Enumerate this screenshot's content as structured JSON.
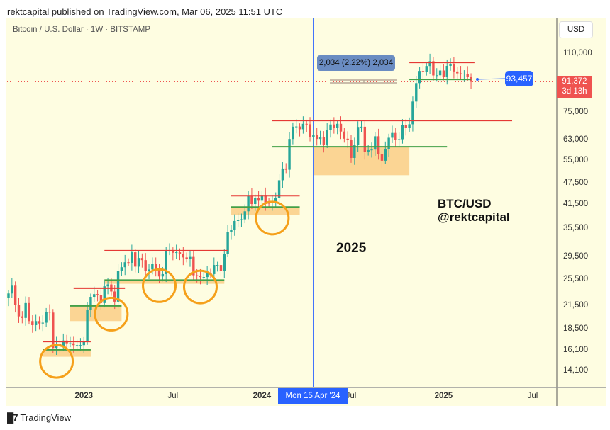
{
  "header": {
    "published": "rektcapital published on TradingView.com, Mar 06, 2025 11:51 UTC"
  },
  "chart_data": {
    "type": "candlestick",
    "symbol": "Bitcoin / U.S. Dollar · 1W · BITSTAMP",
    "interval": "1W",
    "currency": "USD",
    "y_scale": "log",
    "ylim": [
      12500,
      125000
    ],
    "x_start": "2022-08-01",
    "close": [
      23200,
      24400,
      21500,
      20000,
      19800,
      21800,
      19400,
      18900,
      19400,
      19100,
      19200,
      20600,
      20500,
      16300,
      16700,
      16500,
      17100,
      16800,
      16800,
      16600,
      16600,
      16600,
      17000,
      20900,
      22700,
      23100,
      23000,
      21800,
      24300,
      24600,
      23500,
      22000,
      26900,
      27500,
      28400,
      28300,
      30300,
      27600,
      29200,
      28800,
      26800,
      27100,
      28100,
      27100,
      25900,
      26300,
      30500,
      30600,
      30200,
      30300,
      29900,
      29300,
      29000,
      29400,
      26100,
      26000,
      25800,
      25800,
      26500,
      26300,
      27900,
      27900,
      26900,
      30000,
      34500,
      35000,
      37100,
      37400,
      37500,
      39500,
      43800,
      41400,
      43000,
      42300,
      43900,
      41700,
      41600,
      42000,
      43000,
      48300,
      52100,
      51700,
      63100,
      68300,
      68400,
      67200,
      69600,
      69400,
      63900,
      64900,
      63100,
      63900,
      60800,
      66900,
      69300,
      67800,
      69600,
      66200,
      63200,
      62700,
      55800,
      60800,
      68200,
      68300,
      58100,
      58700,
      58900,
      64200,
      57300,
      54800,
      59100,
      63600,
      65600,
      62800,
      63000,
      69000,
      67900,
      69400,
      80400,
      90600,
      98000,
      97200,
      101200,
      104400,
      95200,
      95300,
      98300,
      94500,
      101300,
      102600,
      97700,
      96500,
      96100,
      96300,
      94200,
      91372
    ],
    "price_ticks": [
      "110,000",
      "75,000",
      "63,000",
      "55,000",
      "47,500",
      "41,500",
      "35,500",
      "29,500",
      "25,500",
      "21,500",
      "18,500",
      "16,100",
      "14,100"
    ],
    "price_tick_values": [
      110000,
      75000,
      63000,
      55000,
      47500,
      41500,
      35500,
      29500,
      25500,
      21500,
      18500,
      16100,
      14100
    ],
    "time_ticks": [
      {
        "label": "2023",
        "date": "2023-01-02",
        "bold": true
      },
      {
        "label": "Jul",
        "date": "2023-07-03",
        "bold": false
      },
      {
        "label": "2024",
        "date": "2024-01-01",
        "bold": true
      },
      {
        "label": "Jul",
        "date": "2024-07-01",
        "bold": false
      },
      {
        "label": "2025",
        "date": "2025-01-06",
        "bold": true
      },
      {
        "label": "Jul",
        "date": "2025-07-07",
        "bold": false
      }
    ],
    "current_price": {
      "value": "91,372",
      "countdown": "3d 13h",
      "color": "#ef5350"
    },
    "crosshair": {
      "date": "2024-04-15",
      "label": "Mon 15 Apr '24",
      "color": "#2962ff"
    },
    "price_label": {
      "value": "93,457",
      "color": "#2962ff"
    },
    "measure": {
      "label": "2,034 (2.22%) 2,034"
    },
    "colors": {
      "up": "#26a69a",
      "down": "#ef5350",
      "resistance": "#e53935",
      "support": "#43a047",
      "zone": "#f9c77a",
      "circle": "#f5a01a",
      "background": "#fefde1"
    },
    "resistance_lines": [
      {
        "price": 17000,
        "from": "2022-10-10",
        "to": "2023-01-16"
      },
      {
        "price": 24000,
        "from": "2022-12-12",
        "to": "2023-03-27"
      },
      {
        "price": 30600,
        "from": "2023-02-13",
        "to": "2023-10-23"
      },
      {
        "price": 43700,
        "from": "2023-10-30",
        "to": "2024-03-18"
      },
      {
        "price": 71100,
        "from": "2024-01-22",
        "to": "2025-05-26"
      },
      {
        "price": 103600,
        "from": "2024-10-28",
        "to": "2025-03-10"
      }
    ],
    "support_lines": [
      {
        "price": 16100,
        "from": "2022-10-10",
        "to": "2023-01-16"
      },
      {
        "price": 21400,
        "from": "2022-12-05",
        "to": "2023-03-20"
      },
      {
        "price": 25300,
        "from": "2023-02-13",
        "to": "2023-10-16"
      },
      {
        "price": 40600,
        "from": "2023-10-30",
        "to": "2024-03-18"
      },
      {
        "price": 60000,
        "from": "2024-01-22",
        "to": "2025-01-13"
      },
      {
        "price": 92800,
        "from": "2024-10-28",
        "to": "2025-03-03"
      }
    ],
    "zones": [
      {
        "top": 16100,
        "bottom": 15400,
        "from": "2022-10-10",
        "to": "2023-01-16"
      },
      {
        "top": 21400,
        "bottom": 19400,
        "from": "2022-12-05",
        "to": "2023-03-20"
      },
      {
        "top": 25300,
        "bottom": 24700,
        "from": "2023-02-13",
        "to": "2023-10-16"
      },
      {
        "top": 40600,
        "bottom": 38600,
        "from": "2023-10-30",
        "to": "2024-03-18"
      },
      {
        "top": 60000,
        "bottom": 49900,
        "from": "2024-04-15",
        "to": "2024-10-28"
      }
    ],
    "circles": [
      {
        "date": "2022-11-07",
        "price": 14950
      },
      {
        "date": "2023-02-27",
        "price": 20300
      },
      {
        "date": "2023-06-05",
        "price": 24400
      },
      {
        "date": "2023-08-28",
        "price": 24200
      },
      {
        "date": "2024-01-22",
        "price": 37800
      }
    ],
    "annotations": {
      "year": "2025",
      "pair": "BTC/USD",
      "author": "@rektcapital"
    }
  },
  "footer": {
    "brand": "TradingView"
  }
}
